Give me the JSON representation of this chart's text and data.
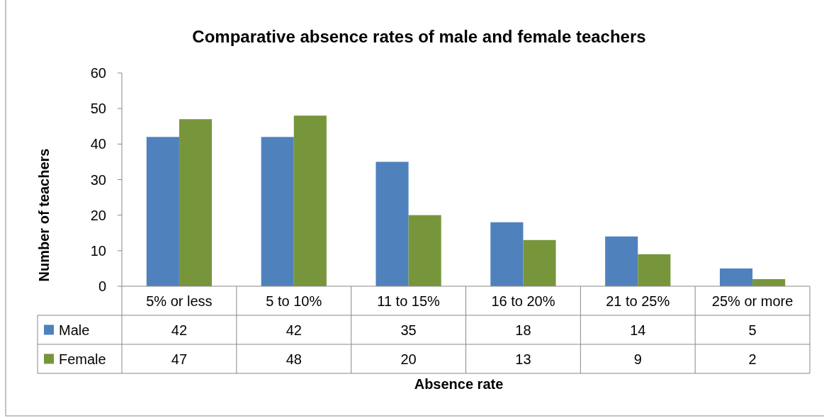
{
  "chart_data": {
    "type": "bar",
    "title": "Comparative absence rates of male and female teachers",
    "xlabel": "Absence rate",
    "ylabel": "Number of teachers",
    "categories": [
      "5% or less",
      "5 to 10%",
      "11 to 15%",
      "16 to 20%",
      "21 to 25%",
      "25% or more"
    ],
    "series": [
      {
        "name": "Male",
        "color": "#4f81bd",
        "values": [
          42,
          42,
          35,
          18,
          14,
          5
        ]
      },
      {
        "name": "Female",
        "color": "#77963b",
        "values": [
          47,
          48,
          20,
          13,
          9,
          2
        ]
      }
    ],
    "ylim": [
      0,
      60
    ],
    "yticks": [
      0,
      10,
      20,
      30,
      40,
      50,
      60
    ],
    "grid": false,
    "legend": "bottom left",
    "data_labels": true
  }
}
